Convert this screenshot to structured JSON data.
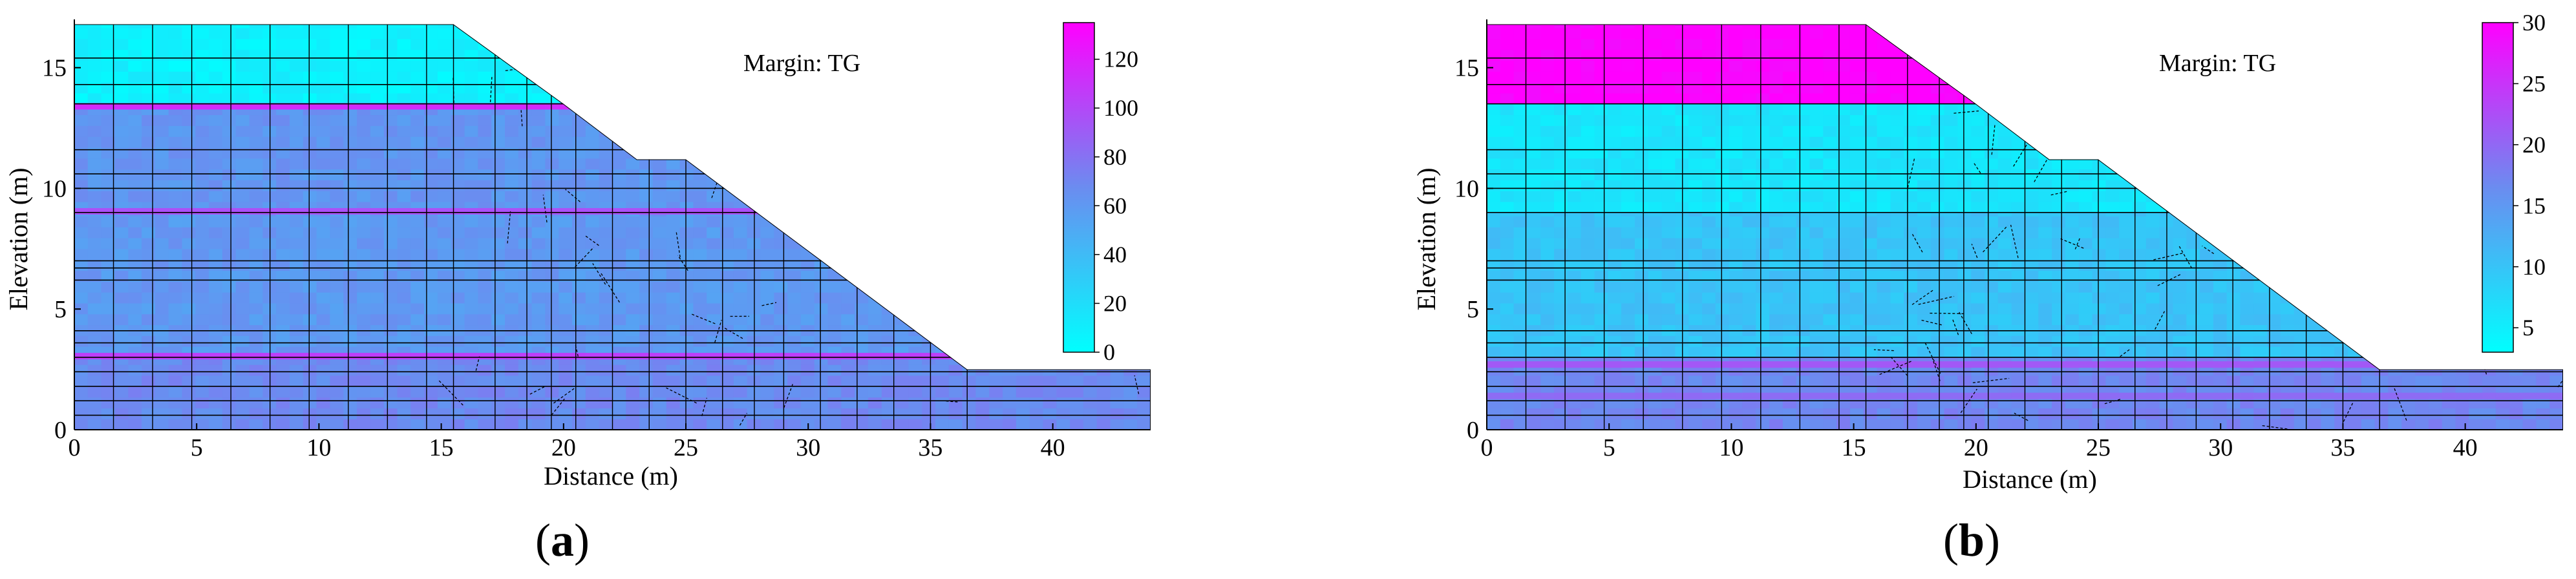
{
  "chart_data": [
    {
      "panel_label_prefix": "(",
      "panel_label_letter": "a",
      "panel_label_suffix": ")",
      "type": "heatmap",
      "title": "",
      "xlabel": "Distance (m)",
      "ylabel": "Elevation (m)",
      "annotation": "Margin: TG",
      "xlim": [
        0,
        44
      ],
      "ylim": [
        0,
        17
      ],
      "xticks": [
        0,
        5,
        10,
        15,
        20,
        25,
        30,
        35,
        40
      ],
      "yticks": [
        0,
        5,
        10,
        15
      ],
      "colorbar": {
        "min": 0,
        "max": 135,
        "ticks": [
          0,
          20,
          40,
          60,
          80,
          100,
          120
        ],
        "low_color": "#00ffff",
        "mid_color": "#6b8cf0",
        "high_color": "#ff00ff"
      },
      "layers": [
        {
          "ymin": 13.5,
          "ymax": 16.8,
          "value": 8
        },
        {
          "ymin": 9.0,
          "ymax": 13.5,
          "value": 62
        },
        {
          "ymin": 3.0,
          "ymax": 9.0,
          "value": 60
        },
        {
          "ymin": 0,
          "ymax": 3.0,
          "value": 68
        }
      ],
      "bright_bands": [
        {
          "y": 13.4,
          "value": 120
        },
        {
          "y": 9.05,
          "value": 100
        },
        {
          "y": 3.05,
          "value": 110
        }
      ],
      "profile": [
        [
          0,
          16.8
        ],
        [
          15.5,
          16.8
        ],
        [
          20,
          13.5
        ],
        [
          23,
          11.2
        ],
        [
          25,
          11.2
        ],
        [
          36.5,
          2.5
        ],
        [
          44,
          2.5
        ],
        [
          44,
          0
        ],
        [
          0,
          0
        ]
      ]
    },
    {
      "panel_label_prefix": "(",
      "panel_label_letter": "b",
      "panel_label_suffix": ")",
      "type": "heatmap",
      "title": "",
      "xlabel": "Distance (m)",
      "ylabel": "Elevation (m)",
      "annotation": "Margin: TG",
      "xlim": [
        0,
        44
      ],
      "ylim": [
        0,
        17
      ],
      "xticks": [
        0,
        5,
        10,
        15,
        20,
        25,
        30,
        35,
        40
      ],
      "yticks": [
        0,
        5,
        10,
        15
      ],
      "colorbar": {
        "min": 3,
        "max": 30,
        "ticks": [
          5,
          10,
          15,
          20,
          25,
          30
        ],
        "low_color": "#00ffff",
        "mid_color": "#6b8cf0",
        "high_color": "#ff00ff"
      },
      "layers": [
        {
          "ymin": 13.5,
          "ymax": 16.8,
          "value": 30
        },
        {
          "ymin": 9.0,
          "ymax": 13.5,
          "value": 6
        },
        {
          "ymin": 3.0,
          "ymax": 9.0,
          "value": 10
        },
        {
          "ymin": 0,
          "ymax": 3.0,
          "value": 17
        }
      ],
      "bright_bands": [
        {
          "y": 2.7,
          "value": 22
        },
        {
          "y": 1.4,
          "value": 20
        }
      ],
      "profile": [
        [
          0,
          16.8
        ],
        [
          15.5,
          16.8
        ],
        [
          20,
          13.5
        ],
        [
          23,
          11.2
        ],
        [
          25,
          11.2
        ],
        [
          36.5,
          2.5
        ],
        [
          44,
          2.5
        ],
        [
          44,
          0
        ],
        [
          0,
          0
        ]
      ]
    }
  ]
}
